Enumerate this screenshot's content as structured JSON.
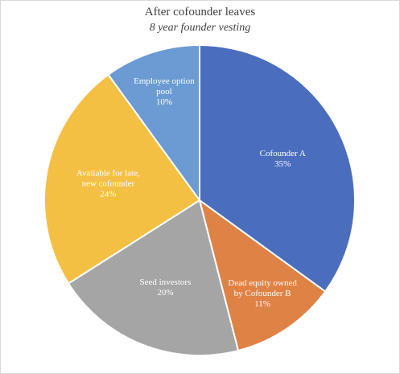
{
  "chart_data": {
    "type": "pie",
    "title": "After cofounder leaves",
    "subtitle": "8 year founder vesting",
    "slices": [
      {
        "label": [
          "Cofounder A",
          "35%"
        ],
        "value": 35,
        "color": "#4a6ebd"
      },
      {
        "label": [
          "Dead equity owned",
          "by Cofounder B",
          "11%"
        ],
        "value": 11,
        "color": "#df8245"
      },
      {
        "label": [
          "Seed investors",
          "20%"
        ],
        "value": 20,
        "color": "#a5a5a5"
      },
      {
        "label": [
          "Available for late,",
          "new cofounder",
          "24%"
        ],
        "value": 24,
        "color": "#f4c043"
      },
      {
        "label": [
          "Employee option",
          "pool",
          "10%"
        ],
        "value": 10,
        "color": "#6b9bd2"
      }
    ]
  }
}
